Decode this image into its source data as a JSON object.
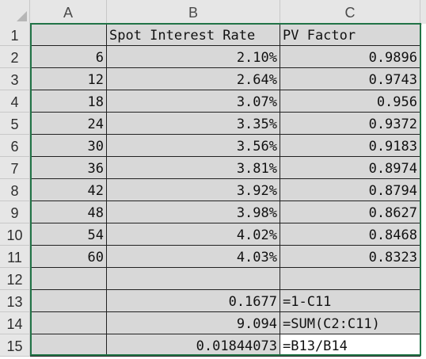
{
  "sheet": {
    "columns": [
      "A",
      "B",
      "C"
    ],
    "row_numbers": [
      "1",
      "2",
      "3",
      "4",
      "5",
      "6",
      "7",
      "8",
      "9",
      "10",
      "11",
      "12",
      "13",
      "14",
      "15"
    ],
    "rows": [
      {
        "a": "",
        "b": "Spot Interest Rate",
        "c": "PV Factor"
      },
      {
        "a": "6",
        "b": "2.10%",
        "c": "0.9896"
      },
      {
        "a": "12",
        "b": "2.64%",
        "c": "0.9743"
      },
      {
        "a": "18",
        "b": "3.07%",
        "c": "0.956"
      },
      {
        "a": "24",
        "b": "3.35%",
        "c": "0.9372"
      },
      {
        "a": "30",
        "b": "3.56%",
        "c": "0.9183"
      },
      {
        "a": "36",
        "b": "3.81%",
        "c": "0.8974"
      },
      {
        "a": "42",
        "b": "3.92%",
        "c": "0.8794"
      },
      {
        "a": "48",
        "b": "3.98%",
        "c": "0.8627"
      },
      {
        "a": "54",
        "b": "4.02%",
        "c": "0.8468"
      },
      {
        "a": "60",
        "b": "4.03%",
        "c": "0.8323"
      },
      {
        "a": "",
        "b": "",
        "c": ""
      },
      {
        "a": "",
        "b": "0.1677",
        "c": "=1-C11"
      },
      {
        "a": "",
        "b": "9.094",
        "c": "=SUM(C2:C11)"
      },
      {
        "a": "",
        "b": "0.01844073",
        "c": "=B13/B14"
      }
    ]
  },
  "colors": {
    "cell_fill": "#d8d8d8",
    "header_fill": "#e6e6e6",
    "selection_border": "#217346",
    "grid_line": "#222222"
  }
}
